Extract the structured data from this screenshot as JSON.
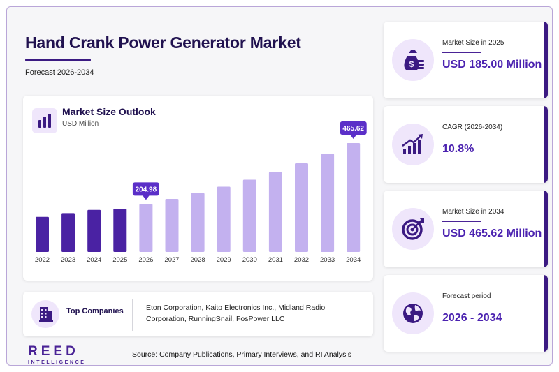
{
  "title": "Hand Crank Power Generator Market",
  "subtitle": "Forecast 2026-2034",
  "chart_card": {
    "heading": "Market Size Outlook",
    "unit": "USD Million"
  },
  "chart_data": {
    "type": "bar",
    "title": "Market Size Outlook",
    "ylabel": "USD Million",
    "categories": [
      "2022",
      "2023",
      "2024",
      "2025",
      "2026",
      "2027",
      "2028",
      "2029",
      "2030",
      "2031",
      "2032",
      "2033",
      "2034"
    ],
    "values": [
      150,
      166,
      180,
      185,
      204.98,
      227,
      252,
      279,
      309,
      342,
      379,
      420,
      465.62
    ],
    "historical_until": "2025",
    "callouts": [
      {
        "category": "2026",
        "label": "204.98"
      },
      {
        "category": "2034",
        "label": "465.62"
      }
    ],
    "ylim": [
      0,
      465.62
    ],
    "grid": false,
    "colors": {
      "historical": "#4a22a3",
      "forecast": "#c3b1ef",
      "callout": "#5b2fc8"
    }
  },
  "companies": {
    "label": "Top Companies",
    "text": "Eton Corporation, Kaito Electronics Inc., Midland Radio Corporation, RunningSnail, FosPower LLC"
  },
  "stats": [
    {
      "label": "Market Size in 2025",
      "value": "USD 185.00 Million",
      "icon": "money-bag-icon"
    },
    {
      "label": "CAGR (2026-2034)",
      "value": "10.8%",
      "icon": "growth-chart-icon"
    },
    {
      "label": "Market Size in 2034",
      "value": "USD 465.62 Million",
      "icon": "target-icon"
    },
    {
      "label": "Forecast period",
      "value": "2026 - 2034",
      "icon": "globe-icon"
    }
  ],
  "logo": {
    "main": "REED",
    "sub": "INTELLIGENCE"
  },
  "source": "Source: Company Publications, Primary Interviews, and RI Analysis",
  "colors": {
    "accent": "#4b22b0",
    "dark": "#20114f",
    "icon_bg": "#efe6fb",
    "border": "#b9a6d8"
  }
}
